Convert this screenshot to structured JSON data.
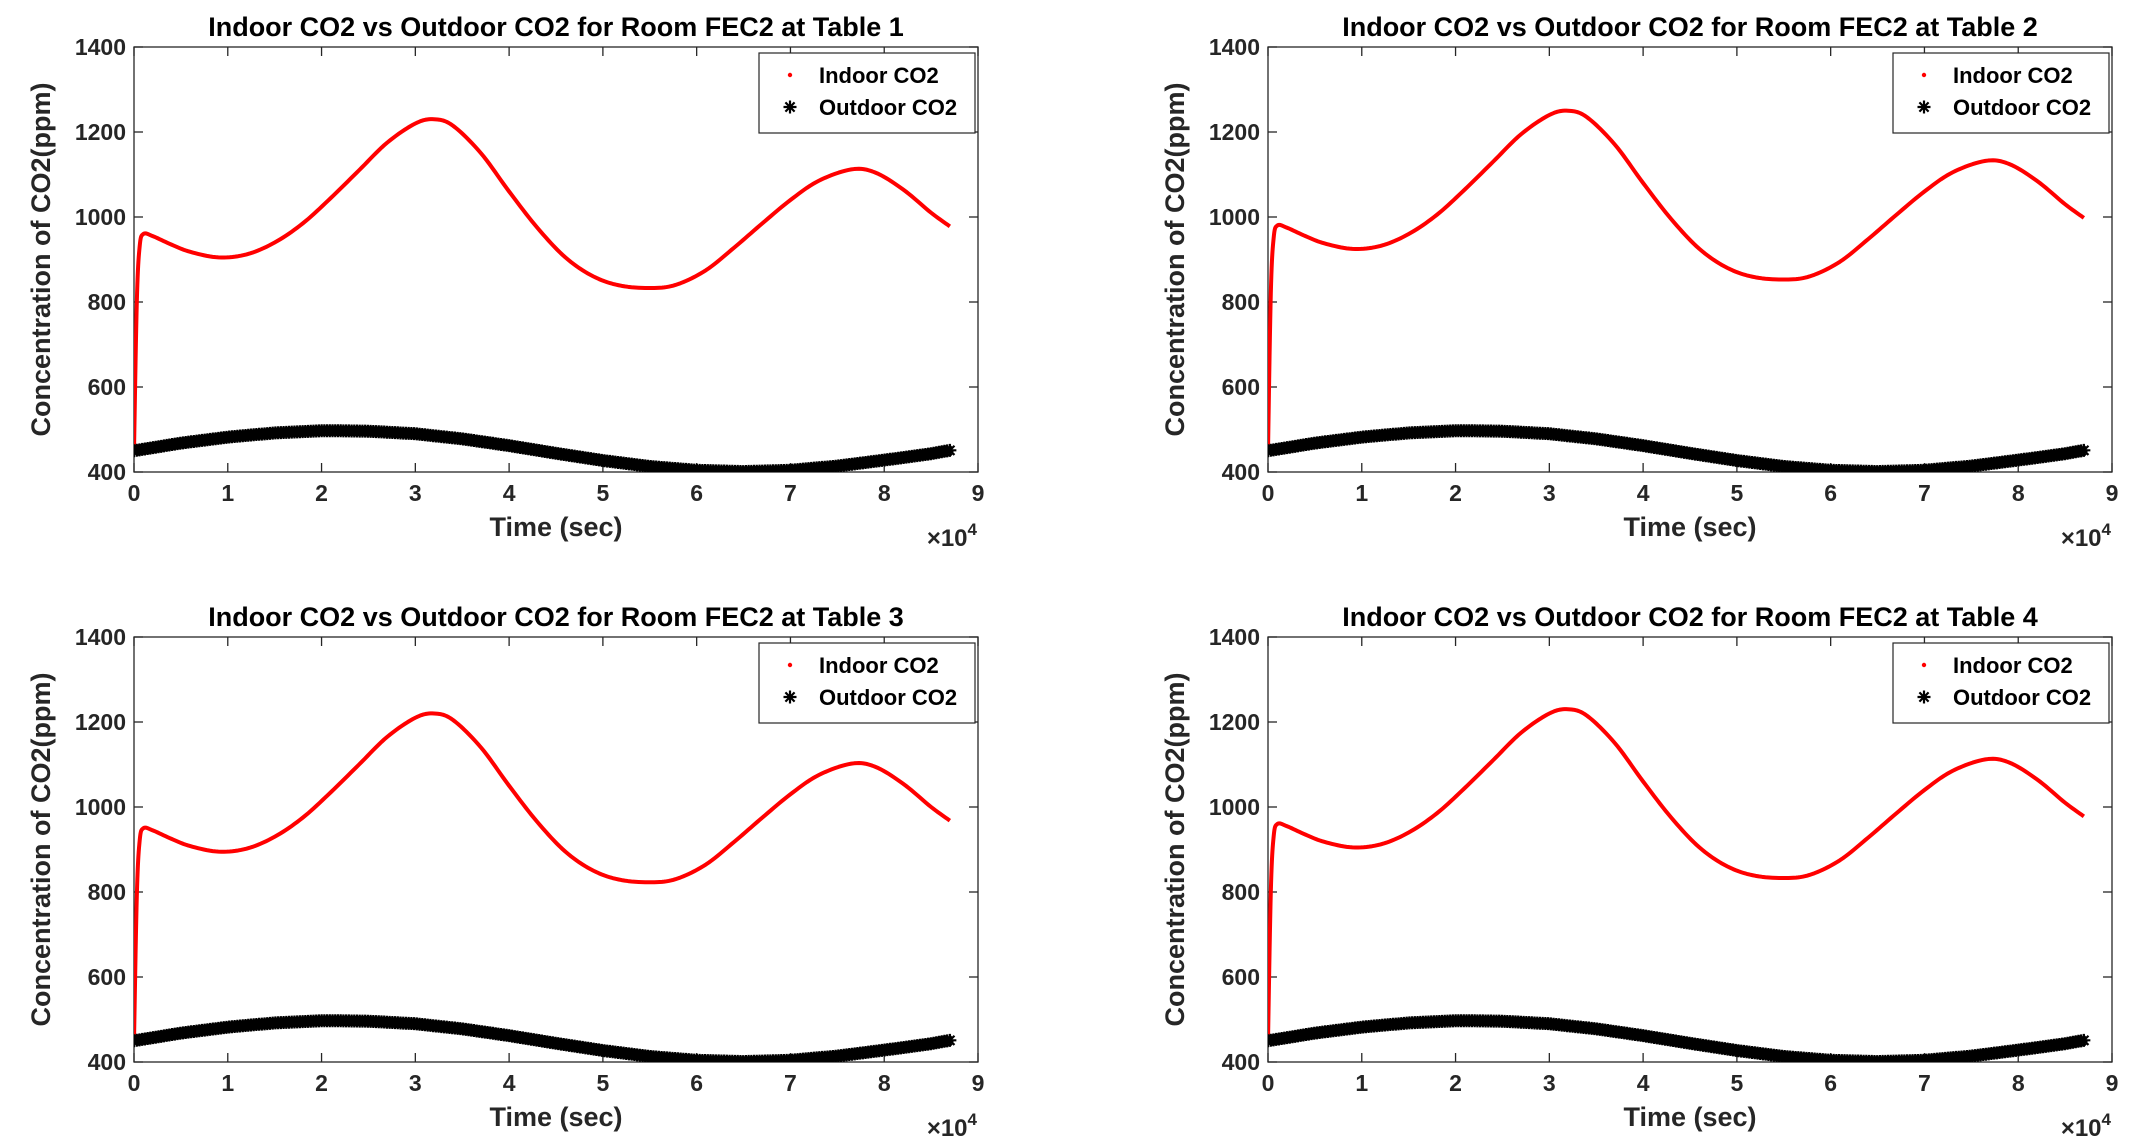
{
  "chart_data": [
    {
      "type": "line",
      "title": "Indoor CO2 vs Outdoor CO2 for Room FEC2 at Table 1",
      "xlabel": "Time (sec)",
      "ylabel": "Concentration of CO2(ppm)",
      "x_multiplier_label": "×10^4",
      "x_multiplier_base": "×10",
      "x_multiplier_exp": "4",
      "xlim": [
        0,
        90000
      ],
      "ylim": [
        400,
        1400
      ],
      "xticks": [
        "0",
        "1",
        "2",
        "3",
        "4",
        "5",
        "6",
        "7",
        "8",
        "9"
      ],
      "yticks": [
        "400",
        "600",
        "800",
        "1000",
        "1200",
        "1400"
      ],
      "legend_position": "top-right",
      "grid": false,
      "series": [
        {
          "name": "Indoor CO2",
          "color": "#ff0000",
          "marker": "dot",
          "x": [
            0,
            300,
            600,
            1000,
            2000,
            4000,
            6000,
            9000,
            12000,
            15000,
            18000,
            21000,
            24000,
            27000,
            30000,
            32000,
            34000,
            37000,
            40000,
            43000,
            46000,
            49000,
            52000,
            55500,
            58000,
            61000,
            64000,
            67000,
            70000,
            73000,
            76500,
            79000,
            82000,
            85000,
            87000
          ],
          "y": [
            450,
            800,
            930,
            960,
            955,
            935,
            918,
            905,
            912,
            940,
            985,
            1045,
            1110,
            1175,
            1220,
            1230,
            1215,
            1150,
            1060,
            975,
            905,
            860,
            838,
            833,
            842,
            875,
            928,
            985,
            1040,
            1085,
            1112,
            1105,
            1065,
            1010,
            978
          ]
        },
        {
          "name": "Outdoor CO2",
          "color": "#000000",
          "marker": "asterisk",
          "x": [
            0,
            5000,
            10000,
            15000,
            20000,
            22000,
            25000,
            30000,
            35000,
            40000,
            45000,
            50000,
            55000,
            60000,
            65000,
            70000,
            75000,
            80000,
            85000,
            87000
          ],
          "y": [
            450,
            468,
            482,
            492,
            497,
            497,
            496,
            490,
            478,
            462,
            444,
            427,
            413,
            404,
            401,
            404,
            414,
            428,
            443,
            451
          ]
        }
      ]
    },
    {
      "type": "line",
      "title": "Indoor CO2 vs Outdoor CO2 for Room FEC2 at Table 2",
      "xlabel": "Time (sec)",
      "ylabel": "Concentration of CO2(ppm)",
      "x_multiplier_label": "×10^4",
      "x_multiplier_base": "×10",
      "x_multiplier_exp": "4",
      "xlim": [
        0,
        90000
      ],
      "ylim": [
        400,
        1400
      ],
      "xticks": [
        "0",
        "1",
        "2",
        "3",
        "4",
        "5",
        "6",
        "7",
        "8",
        "9"
      ],
      "yticks": [
        "400",
        "600",
        "800",
        "1000",
        "1200",
        "1400"
      ],
      "legend_position": "top-right",
      "grid": false,
      "series": [
        {
          "name": "Indoor CO2",
          "color": "#ff0000",
          "marker": "dot",
          "x": [
            0,
            300,
            600,
            1000,
            2000,
            4000,
            6000,
            9000,
            12000,
            15000,
            18000,
            21000,
            24000,
            27000,
            30000,
            32000,
            34000,
            37000,
            40000,
            43000,
            46000,
            49000,
            52000,
            55500,
            58000,
            61000,
            64000,
            67000,
            70000,
            73000,
            76500,
            79000,
            82000,
            85000,
            87000
          ],
          "y": [
            450,
            820,
            950,
            980,
            975,
            955,
            938,
            925,
            932,
            960,
            1005,
            1065,
            1130,
            1195,
            1240,
            1250,
            1235,
            1170,
            1080,
            995,
            925,
            880,
            858,
            853,
            862,
            895,
            948,
            1005,
            1060,
            1105,
            1132,
            1125,
            1085,
            1030,
            998
          ]
        },
        {
          "name": "Outdoor CO2",
          "color": "#000000",
          "marker": "asterisk",
          "x": [
            0,
            5000,
            10000,
            15000,
            20000,
            22000,
            25000,
            30000,
            35000,
            40000,
            45000,
            50000,
            55000,
            60000,
            65000,
            70000,
            75000,
            80000,
            85000,
            87000
          ],
          "y": [
            450,
            468,
            482,
            492,
            497,
            497,
            496,
            490,
            478,
            462,
            444,
            427,
            413,
            404,
            401,
            404,
            414,
            428,
            443,
            451
          ]
        }
      ]
    },
    {
      "type": "line",
      "title": "Indoor CO2 vs Outdoor CO2 for Room FEC2 at Table 3",
      "xlabel": "Time (sec)",
      "ylabel": "Concentration of CO2(ppm)",
      "x_multiplier_label": "×10^4",
      "x_multiplier_base": "×10",
      "x_multiplier_exp": "4",
      "xlim": [
        0,
        90000
      ],
      "ylim": [
        400,
        1400
      ],
      "xticks": [
        "0",
        "1",
        "2",
        "3",
        "4",
        "5",
        "6",
        "7",
        "8",
        "9"
      ],
      "yticks": [
        "400",
        "600",
        "800",
        "1000",
        "1200",
        "1400"
      ],
      "legend_position": "top-right",
      "grid": false,
      "series": [
        {
          "name": "Indoor CO2",
          "color": "#ff0000",
          "marker": "dot",
          "x": [
            0,
            300,
            600,
            1000,
            2000,
            4000,
            6000,
            9000,
            12000,
            15000,
            18000,
            21000,
            24000,
            27000,
            30000,
            32000,
            34000,
            37000,
            40000,
            43000,
            46000,
            49000,
            52000,
            55500,
            58000,
            61000,
            64000,
            67000,
            70000,
            73000,
            76500,
            79000,
            82000,
            85000,
            87000
          ],
          "y": [
            450,
            790,
            920,
            950,
            945,
            925,
            908,
            895,
            902,
            930,
            975,
            1035,
            1100,
            1165,
            1210,
            1220,
            1205,
            1140,
            1050,
            965,
            895,
            850,
            828,
            823,
            832,
            865,
            918,
            975,
            1030,
            1075,
            1102,
            1095,
            1055,
            1000,
            968
          ]
        },
        {
          "name": "Outdoor CO2",
          "color": "#000000",
          "marker": "asterisk",
          "x": [
            0,
            5000,
            10000,
            15000,
            20000,
            22000,
            25000,
            30000,
            35000,
            40000,
            45000,
            50000,
            55000,
            60000,
            65000,
            70000,
            75000,
            80000,
            85000,
            87000
          ],
          "y": [
            450,
            468,
            482,
            492,
            497,
            497,
            496,
            490,
            478,
            462,
            444,
            427,
            413,
            404,
            401,
            404,
            414,
            428,
            443,
            451
          ]
        }
      ]
    },
    {
      "type": "line",
      "title": "Indoor CO2 vs Outdoor CO2 for Room FEC2 at Table 4",
      "xlabel": "Time (sec)",
      "ylabel": "Concentration of CO2(ppm)",
      "x_multiplier_label": "×10^4",
      "x_multiplier_base": "×10",
      "x_multiplier_exp": "4",
      "xlim": [
        0,
        90000
      ],
      "ylim": [
        400,
        1400
      ],
      "xticks": [
        "0",
        "1",
        "2",
        "3",
        "4",
        "5",
        "6",
        "7",
        "8",
        "9"
      ],
      "yticks": [
        "400",
        "600",
        "800",
        "1000",
        "1200",
        "1400"
      ],
      "legend_position": "top-right",
      "grid": false,
      "series": [
        {
          "name": "Indoor CO2",
          "color": "#ff0000",
          "marker": "dot",
          "x": [
            0,
            300,
            600,
            1000,
            2000,
            4000,
            6000,
            9000,
            12000,
            15000,
            18000,
            21000,
            24000,
            27000,
            30000,
            32000,
            34000,
            37000,
            40000,
            43000,
            46000,
            49000,
            52000,
            55500,
            58000,
            61000,
            64000,
            67000,
            70000,
            73000,
            76500,
            79000,
            82000,
            85000,
            87000
          ],
          "y": [
            450,
            800,
            930,
            960,
            955,
            935,
            918,
            905,
            912,
            940,
            985,
            1045,
            1110,
            1175,
            1220,
            1230,
            1215,
            1150,
            1060,
            975,
            905,
            860,
            838,
            833,
            842,
            875,
            928,
            985,
            1040,
            1085,
            1112,
            1105,
            1065,
            1010,
            978
          ]
        },
        {
          "name": "Outdoor CO2",
          "color": "#000000",
          "marker": "asterisk",
          "x": [
            0,
            5000,
            10000,
            15000,
            20000,
            22000,
            25000,
            30000,
            35000,
            40000,
            45000,
            50000,
            55000,
            60000,
            65000,
            70000,
            75000,
            80000,
            85000,
            87000
          ],
          "y": [
            450,
            468,
            482,
            492,
            497,
            497,
            496,
            490,
            478,
            462,
            444,
            427,
            413,
            404,
            401,
            404,
            414,
            428,
            443,
            451
          ]
        }
      ]
    }
  ]
}
